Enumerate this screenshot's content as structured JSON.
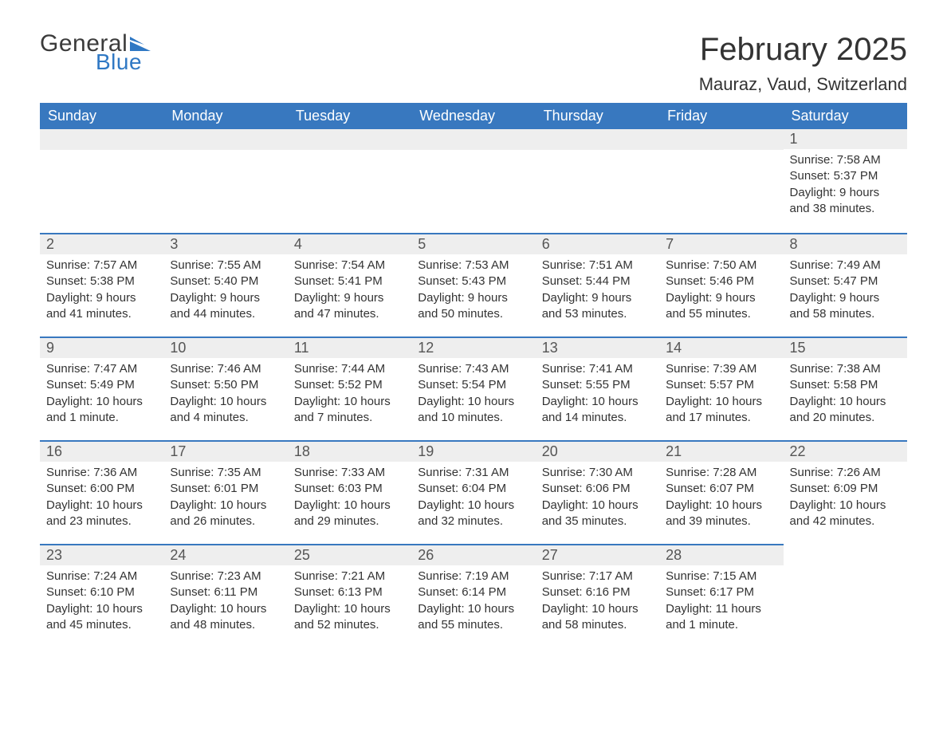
{
  "logo": {
    "general": "General",
    "blue": "Blue",
    "flag_color": "#2f78c4"
  },
  "title": "February 2025",
  "location": "Mauraz, Vaud, Switzerland",
  "colors": {
    "header_bg": "#3878bf",
    "header_text": "#ffffff",
    "day_head_bg": "#eeeeee",
    "day_head_border": "#3878bf",
    "text": "#333333"
  },
  "day_names": [
    "Sunday",
    "Monday",
    "Tuesday",
    "Wednesday",
    "Thursday",
    "Friday",
    "Saturday"
  ],
  "weeks": [
    [
      null,
      null,
      null,
      null,
      null,
      null,
      {
        "n": "1",
        "sr": "Sunrise: 7:58 AM",
        "ss": "Sunset: 5:37 PM",
        "dl": "Daylight: 9 hours and 38 minutes."
      }
    ],
    [
      {
        "n": "2",
        "sr": "Sunrise: 7:57 AM",
        "ss": "Sunset: 5:38 PM",
        "dl": "Daylight: 9 hours and 41 minutes."
      },
      {
        "n": "3",
        "sr": "Sunrise: 7:55 AM",
        "ss": "Sunset: 5:40 PM",
        "dl": "Daylight: 9 hours and 44 minutes."
      },
      {
        "n": "4",
        "sr": "Sunrise: 7:54 AM",
        "ss": "Sunset: 5:41 PM",
        "dl": "Daylight: 9 hours and 47 minutes."
      },
      {
        "n": "5",
        "sr": "Sunrise: 7:53 AM",
        "ss": "Sunset: 5:43 PM",
        "dl": "Daylight: 9 hours and 50 minutes."
      },
      {
        "n": "6",
        "sr": "Sunrise: 7:51 AM",
        "ss": "Sunset: 5:44 PM",
        "dl": "Daylight: 9 hours and 53 minutes."
      },
      {
        "n": "7",
        "sr": "Sunrise: 7:50 AM",
        "ss": "Sunset: 5:46 PM",
        "dl": "Daylight: 9 hours and 55 minutes."
      },
      {
        "n": "8",
        "sr": "Sunrise: 7:49 AM",
        "ss": "Sunset: 5:47 PM",
        "dl": "Daylight: 9 hours and 58 minutes."
      }
    ],
    [
      {
        "n": "9",
        "sr": "Sunrise: 7:47 AM",
        "ss": "Sunset: 5:49 PM",
        "dl": "Daylight: 10 hours and 1 minute."
      },
      {
        "n": "10",
        "sr": "Sunrise: 7:46 AM",
        "ss": "Sunset: 5:50 PM",
        "dl": "Daylight: 10 hours and 4 minutes."
      },
      {
        "n": "11",
        "sr": "Sunrise: 7:44 AM",
        "ss": "Sunset: 5:52 PM",
        "dl": "Daylight: 10 hours and 7 minutes."
      },
      {
        "n": "12",
        "sr": "Sunrise: 7:43 AM",
        "ss": "Sunset: 5:54 PM",
        "dl": "Daylight: 10 hours and 10 minutes."
      },
      {
        "n": "13",
        "sr": "Sunrise: 7:41 AM",
        "ss": "Sunset: 5:55 PM",
        "dl": "Daylight: 10 hours and 14 minutes."
      },
      {
        "n": "14",
        "sr": "Sunrise: 7:39 AM",
        "ss": "Sunset: 5:57 PM",
        "dl": "Daylight: 10 hours and 17 minutes."
      },
      {
        "n": "15",
        "sr": "Sunrise: 7:38 AM",
        "ss": "Sunset: 5:58 PM",
        "dl": "Daylight: 10 hours and 20 minutes."
      }
    ],
    [
      {
        "n": "16",
        "sr": "Sunrise: 7:36 AM",
        "ss": "Sunset: 6:00 PM",
        "dl": "Daylight: 10 hours and 23 minutes."
      },
      {
        "n": "17",
        "sr": "Sunrise: 7:35 AM",
        "ss": "Sunset: 6:01 PM",
        "dl": "Daylight: 10 hours and 26 minutes."
      },
      {
        "n": "18",
        "sr": "Sunrise: 7:33 AM",
        "ss": "Sunset: 6:03 PM",
        "dl": "Daylight: 10 hours and 29 minutes."
      },
      {
        "n": "19",
        "sr": "Sunrise: 7:31 AM",
        "ss": "Sunset: 6:04 PM",
        "dl": "Daylight: 10 hours and 32 minutes."
      },
      {
        "n": "20",
        "sr": "Sunrise: 7:30 AM",
        "ss": "Sunset: 6:06 PM",
        "dl": "Daylight: 10 hours and 35 minutes."
      },
      {
        "n": "21",
        "sr": "Sunrise: 7:28 AM",
        "ss": "Sunset: 6:07 PM",
        "dl": "Daylight: 10 hours and 39 minutes."
      },
      {
        "n": "22",
        "sr": "Sunrise: 7:26 AM",
        "ss": "Sunset: 6:09 PM",
        "dl": "Daylight: 10 hours and 42 minutes."
      }
    ],
    [
      {
        "n": "23",
        "sr": "Sunrise: 7:24 AM",
        "ss": "Sunset: 6:10 PM",
        "dl": "Daylight: 10 hours and 45 minutes."
      },
      {
        "n": "24",
        "sr": "Sunrise: 7:23 AM",
        "ss": "Sunset: 6:11 PM",
        "dl": "Daylight: 10 hours and 48 minutes."
      },
      {
        "n": "25",
        "sr": "Sunrise: 7:21 AM",
        "ss": "Sunset: 6:13 PM",
        "dl": "Daylight: 10 hours and 52 minutes."
      },
      {
        "n": "26",
        "sr": "Sunrise: 7:19 AM",
        "ss": "Sunset: 6:14 PM",
        "dl": "Daylight: 10 hours and 55 minutes."
      },
      {
        "n": "27",
        "sr": "Sunrise: 7:17 AM",
        "ss": "Sunset: 6:16 PM",
        "dl": "Daylight: 10 hours and 58 minutes."
      },
      {
        "n": "28",
        "sr": "Sunrise: 7:15 AM",
        "ss": "Sunset: 6:17 PM",
        "dl": "Daylight: 11 hours and 1 minute."
      },
      null
    ]
  ]
}
